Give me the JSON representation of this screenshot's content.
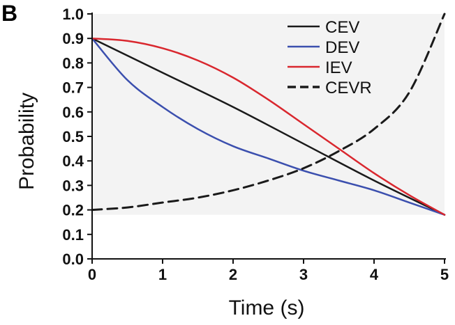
{
  "panel_label": "B",
  "chart_data": {
    "type": "line",
    "xlabel": "Time (s)",
    "ylabel": "Probability",
    "xlim": [
      0,
      5
    ],
    "ylim": [
      0.0,
      1.0
    ],
    "x_ticks": [
      "0",
      "1",
      "2",
      "3",
      "4",
      "5"
    ],
    "y_ticks": [
      "0.0",
      "0.1",
      "0.2",
      "0.3",
      "0.4",
      "0.5",
      "0.6",
      "0.7",
      "0.8",
      "0.9",
      "1.0"
    ],
    "grid": false,
    "legend_position": "top-right",
    "shaded_region": {
      "y_min": 0.18,
      "y_max": 1.0,
      "color": "#f3f3f3"
    },
    "series": [
      {
        "name": "CEV",
        "color": "#1a1a1a",
        "dash": "solid",
        "points": [
          [
            0,
            0.9
          ],
          [
            1,
            0.76
          ],
          [
            2,
            0.62
          ],
          [
            3,
            0.47
          ],
          [
            4,
            0.32
          ],
          [
            5,
            0.18
          ]
        ]
      },
      {
        "name": "DEV",
        "color": "#3b4fae",
        "dash": "solid",
        "points": [
          [
            0,
            0.9
          ],
          [
            0.5,
            0.73
          ],
          [
            1,
            0.62
          ],
          [
            1.5,
            0.53
          ],
          [
            2,
            0.46
          ],
          [
            2.5,
            0.41
          ],
          [
            3,
            0.36
          ],
          [
            3.5,
            0.32
          ],
          [
            4,
            0.28
          ],
          [
            4.5,
            0.23
          ],
          [
            5,
            0.18
          ]
        ]
      },
      {
        "name": "IEV",
        "color": "#d9272e",
        "dash": "solid",
        "points": [
          [
            0,
            0.9
          ],
          [
            0.5,
            0.89
          ],
          [
            1,
            0.86
          ],
          [
            1.5,
            0.81
          ],
          [
            2,
            0.74
          ],
          [
            2.5,
            0.65
          ],
          [
            3,
            0.55
          ],
          [
            3.5,
            0.45
          ],
          [
            4,
            0.35
          ],
          [
            4.5,
            0.26
          ],
          [
            5,
            0.18
          ]
        ]
      },
      {
        "name": "CEVR",
        "color": "#1a1a1a",
        "dash": "dashed",
        "points": [
          [
            0,
            0.2
          ],
          [
            0.5,
            0.21
          ],
          [
            1,
            0.23
          ],
          [
            1.5,
            0.25
          ],
          [
            2,
            0.28
          ],
          [
            2.5,
            0.32
          ],
          [
            3,
            0.37
          ],
          [
            3.5,
            0.44
          ],
          [
            4,
            0.53
          ],
          [
            4.5,
            0.68
          ],
          [
            5,
            1.0
          ]
        ]
      }
    ]
  }
}
